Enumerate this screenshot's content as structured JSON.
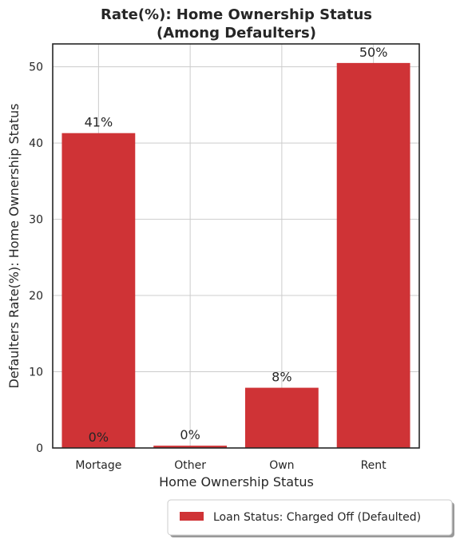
{
  "chart_data": {
    "type": "bar",
    "title": "Rate(%): Home Ownership Status",
    "subtitle": "(Among Defaulters)",
    "xlabel": "Home Ownership Status",
    "ylabel": "Defaulters Rate(%): Home Ownership Status",
    "categories": [
      "Mortage",
      "Other",
      "Own",
      "Rent"
    ],
    "series": [
      {
        "name": "Loan Status: Charged Off (Defaulted)",
        "values": [
          41.3,
          0.3,
          7.9,
          50.5
        ],
        "labels": [
          "41%",
          "0%",
          "8%",
          "50%"
        ],
        "color": "#cf3336"
      }
    ],
    "extra_labels": [
      {
        "category": "Mortage",
        "value": 0,
        "text": "0%"
      }
    ],
    "ylim": [
      0,
      53
    ],
    "yticks": [
      0,
      10,
      20,
      30,
      40,
      50
    ],
    "grid": true,
    "legend_position": "bottom-right"
  }
}
